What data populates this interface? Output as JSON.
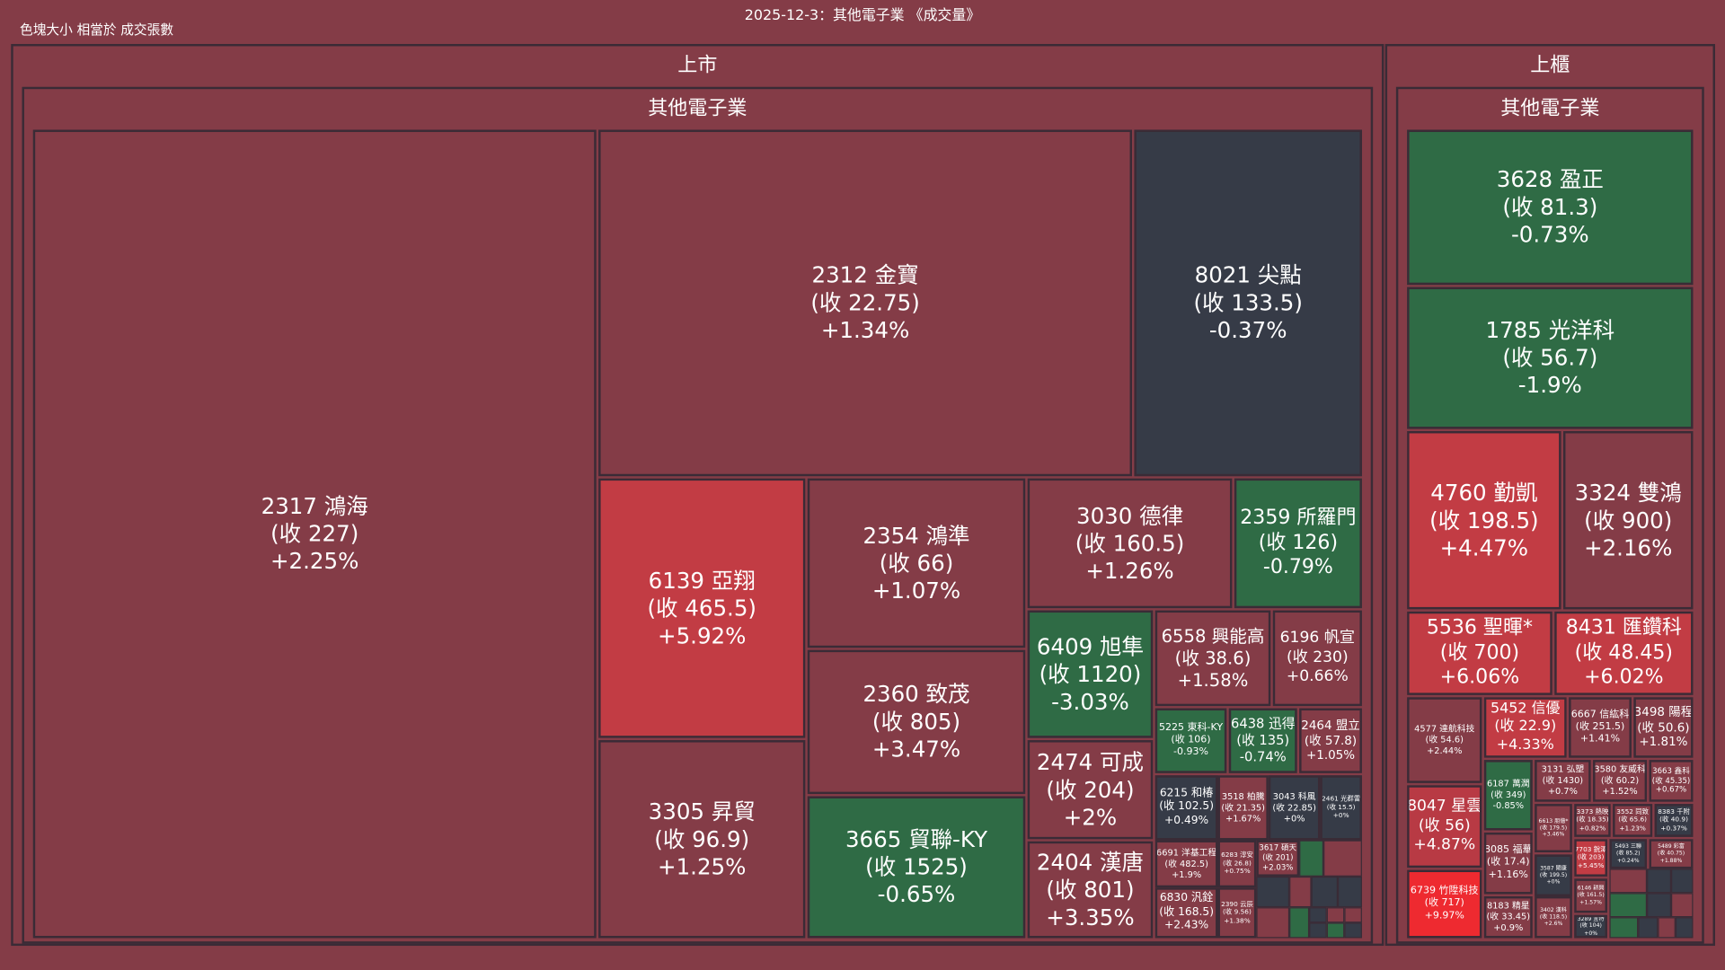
{
  "header": {
    "title": "2025-12-3：其他電子業 《成交量》",
    "subtitle": "色塊大小 相當於 成交張數"
  },
  "colors": {
    "background": "#843c47",
    "border": "#3a2b36",
    "flat": "#363b47",
    "down": "#2f6b45",
    "up_strong": "#c23c44",
    "limit_up": "#ee2a30"
  },
  "markets": [
    {
      "label": "上市",
      "industry": "其他電子業",
      "tiles": [
        {
          "title": "2317 鴻海",
          "close": "(收 227)",
          "change": "+2.25%",
          "color": "#843c47"
        },
        {
          "title": "2312 金寶",
          "close": "(收 22.75)",
          "change": "+1.34%",
          "color": "#843c47"
        },
        {
          "title": "8021 尖點",
          "close": "(收 133.5)",
          "change": "-0.37%",
          "color": "#363b47"
        },
        {
          "title": "6139 亞翔",
          "close": "(收 465.5)",
          "change": "+5.92%",
          "color": "#c23c44"
        },
        {
          "title": "3305 昇貿",
          "close": "(收 96.9)",
          "change": "+1.25%",
          "color": "#843c47"
        },
        {
          "title": "2354 鴻準",
          "close": "(收 66)",
          "change": "+1.07%",
          "color": "#843c47"
        },
        {
          "title": "2360 致茂",
          "close": "(收 805)",
          "change": "+3.47%",
          "color": "#843c47"
        },
        {
          "title": "3665 貿聯-KY",
          "close": "(收 1525)",
          "change": "-0.65%",
          "color": "#2f6b45"
        },
        {
          "title": "3030 德律",
          "close": "(收 160.5)",
          "change": "+1.26%",
          "color": "#843c47"
        },
        {
          "title": "2359 所羅門",
          "close": "(收 126)",
          "change": "-0.79%",
          "color": "#2f6b45"
        },
        {
          "title": "6409 旭隼",
          "close": "(收 1120)",
          "change": "-3.03%",
          "color": "#2f6b45"
        },
        {
          "title": "2474 可成",
          "close": "(收 204)",
          "change": "+2%",
          "color": "#843c47"
        },
        {
          "title": "2404 漢唐",
          "close": "(收 801)",
          "change": "+3.35%",
          "color": "#843c47"
        },
        {
          "title": "6558 興能高",
          "close": "(收 38.6)",
          "change": "+1.58%",
          "color": "#843c47"
        },
        {
          "title": "6196 帆宣",
          "close": "(收 230)",
          "change": "+0.66%",
          "color": "#843c47"
        },
        {
          "title": "5225 東科-KY",
          "close": "(收 106)",
          "change": "-0.93%",
          "color": "#2f6b45"
        },
        {
          "title": "6438 迅得",
          "close": "(收 135)",
          "change": "-0.74%",
          "color": "#2f6b45"
        },
        {
          "title": "2464 盟立",
          "close": "(收 57.8)",
          "change": "+1.05%",
          "color": "#843c47"
        },
        {
          "title": "6215 和椿",
          "close": "(收 102.5)",
          "change": "+0.49%",
          "color": "#363b47"
        },
        {
          "title": "3518 柏騰",
          "close": "(收 21.35)",
          "change": "+1.67%",
          "color": "#843c47"
        },
        {
          "title": "3043 科風",
          "close": "(收 22.85)",
          "change": "+0%",
          "color": "#363b47"
        },
        {
          "title": "2461 光群雷",
          "close": "(收 15.5)",
          "change": "+0%",
          "color": "#363b47"
        },
        {
          "title": "6691 洋基工程",
          "close": "(收 482.5)",
          "change": "+1.9%",
          "color": "#843c47"
        },
        {
          "title": "6283 淳安",
          "close": "(收 26.8)",
          "change": "+0.75%",
          "color": "#843c47"
        },
        {
          "title": "3617 碩天",
          "close": "(收 201)",
          "change": "+2.03%",
          "color": "#843c47"
        },
        {
          "title": "6830 汎銓",
          "close": "(收 168.5)",
          "change": "+2.43%",
          "color": "#843c47"
        },
        {
          "title": "2390 云辰",
          "close": "(收 9.56)",
          "change": "+1.38%",
          "color": "#843c47"
        }
      ]
    },
    {
      "label": "上櫃",
      "industry": "其他電子業",
      "tiles": [
        {
          "title": "3628 盈正",
          "close": "(收 81.3)",
          "change": "-0.73%",
          "color": "#2f6b45"
        },
        {
          "title": "1785 光洋科",
          "close": "(收 56.7)",
          "change": "-1.9%",
          "color": "#2f6b45"
        },
        {
          "title": "4760 勤凱",
          "close": "(收 198.5)",
          "change": "+4.47%",
          "color": "#c23c44"
        },
        {
          "title": "3324 雙鴻",
          "close": "(收 900)",
          "change": "+2.16%",
          "color": "#843c47"
        },
        {
          "title": "5536 聖暉*",
          "close": "(收 700)",
          "change": "+6.06%",
          "color": "#c23c44"
        },
        {
          "title": "8431 匯鑽科",
          "close": "(收 48.45)",
          "change": "+6.02%",
          "color": "#c23c44"
        },
        {
          "title": "4577 達航科技",
          "close": "(收 54.6)",
          "change": "+2.44%",
          "color": "#843c47"
        },
        {
          "title": "8047 星雲",
          "close": "(收 56)",
          "change": "+4.87%",
          "color": "#b83a44"
        },
        {
          "title": "6739 竹陞科技",
          "close": "(收 717)",
          "change": "+9.97%",
          "color": "#ee2a30"
        },
        {
          "title": "5452 信優",
          "close": "(收 22.9)",
          "change": "+4.33%",
          "color": "#c23c44"
        },
        {
          "title": "6667 信紘科",
          "close": "(收 251.5)",
          "change": "+1.41%",
          "color": "#843c47"
        },
        {
          "title": "3498 陽程",
          "close": "(收 50.6)",
          "change": "+1.81%",
          "color": "#843c47"
        },
        {
          "title": "6187 萬潤",
          "close": "(收 349)",
          "change": "-0.85%",
          "color": "#2f6b45"
        },
        {
          "title": "8085 福華",
          "close": "(收 17.4)",
          "change": "+1.16%",
          "color": "#843c47"
        },
        {
          "title": "8183 精星",
          "close": "(收 33.45)",
          "change": "+0.9%",
          "color": "#843c47"
        },
        {
          "title": "3131 弘塑",
          "close": "(收 1430)",
          "change": "+0.7%",
          "color": "#843c47"
        },
        {
          "title": "3580 友威科",
          "close": "(收 60.2)",
          "change": "+1.52%",
          "color": "#843c47"
        },
        {
          "title": "3663 鑫科",
          "close": "(收 45.35)",
          "change": "+0.67%",
          "color": "#843c47"
        },
        {
          "title": "6613 朋億*",
          "close": "(收 179.5)",
          "change": "+3.46%",
          "color": "#843c47"
        },
        {
          "title": "3373 熱映",
          "close": "(收 18.35)",
          "change": "+0.82%",
          "color": "#843c47"
        },
        {
          "title": "3552 同致",
          "close": "(收 65.6)",
          "change": "+1.23%",
          "color": "#843c47"
        },
        {
          "title": "8383 千附",
          "close": "(收 40.9)",
          "change": "+0.37%",
          "color": "#363b47"
        },
        {
          "title": "3587 閎康",
          "close": "(收 199.5)",
          "change": "+0%",
          "color": "#363b47"
        },
        {
          "title": "3402 漢科",
          "close": "(收 118.5)",
          "change": "+2.6%",
          "color": "#843c47"
        },
        {
          "title": "7703 銳澤",
          "close": "(收 203)",
          "change": "+5.45%",
          "color": "#c23c44"
        },
        {
          "title": "6146 耕興",
          "close": "(收 161.5)",
          "change": "+1.57%",
          "color": "#843c47"
        },
        {
          "title": "3289 宜特",
          "close": "(收 104)",
          "change": "+0%",
          "color": "#363b47"
        },
        {
          "title": "5493 三聯",
          "close": "(收 85.2)",
          "change": "+0.24%",
          "color": "#363b47"
        },
        {
          "title": "5489 彩富",
          "close": "(收 40.75)",
          "change": "+1.88%",
          "color": "#843c47"
        }
      ]
    }
  ]
}
